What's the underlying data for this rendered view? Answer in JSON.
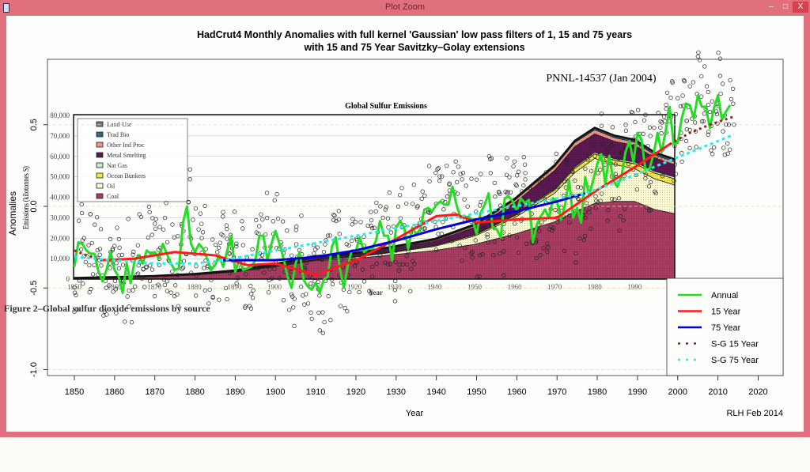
{
  "window": {
    "title": "Plot Zoom",
    "minimize": "–",
    "maximize": "□",
    "close": "X"
  },
  "colors": {
    "annual": "#22dd22",
    "y15": "#ff1a1a",
    "y75": "#0000dd",
    "sg15": "#a02020",
    "sg75": "#22eeee",
    "window_border": "#e0707c"
  },
  "chart_data": {
    "type": "line",
    "title": "HadCrut4 Monthly Anomalies with full kernel 'Gaussian' low pass filters of 1, 15 and 75 years",
    "subtitle": "with 15 and 75 Year Savitzky–Golay extensions",
    "xlabel": "Year",
    "ylabel": "Anomalies",
    "credit": "RLH Feb 2014",
    "xlim": [
      1843,
      2027
    ],
    "ylim": [
      -1.03,
      0.93
    ],
    "xticks": [
      "1850",
      "1860",
      "1870",
      "1880",
      "1890",
      "1900",
      "1910",
      "1920",
      "1930",
      "1940",
      "1950",
      "1960",
      "1970",
      "1980",
      "1990",
      "2000",
      "2010",
      "2020"
    ],
    "yticks": [
      "0.5",
      "0.0",
      "-0.5",
      "-1.0"
    ],
    "grid": "dashed horizontal at y ticks",
    "legend": {
      "placement": "bottom-right",
      "entries": [
        "Annual",
        "15 Year",
        "75 Year",
        "S-G 15 Year",
        "S-G 75 Year"
      ]
    },
    "annual": {
      "start_year": 1850,
      "values": [
        -0.37,
        -0.22,
        -0.23,
        -0.27,
        -0.29,
        -0.29,
        -0.4,
        -0.46,
        -0.39,
        -0.28,
        -0.39,
        -0.43,
        -0.53,
        -0.35,
        -0.47,
        -0.33,
        -0.3,
        -0.35,
        -0.27,
        -0.29,
        -0.28,
        -0.32,
        -0.23,
        -0.29,
        -0.35,
        -0.39,
        -0.38,
        -0.1,
        0.0,
        -0.23,
        -0.28,
        -0.23,
        -0.26,
        -0.32,
        -0.39,
        -0.36,
        -0.3,
        -0.37,
        -0.27,
        -0.18,
        -0.4,
        -0.33,
        -0.39,
        -0.38,
        -0.37,
        -0.33,
        -0.18,
        -0.18,
        -0.33,
        -0.23,
        -0.15,
        -0.23,
        -0.32,
        -0.43,
        -0.5,
        -0.35,
        -0.28,
        -0.45,
        -0.49,
        -0.51,
        -0.47,
        -0.53,
        -0.45,
        -0.43,
        -0.25,
        -0.19,
        -0.38,
        -0.5,
        -0.36,
        -0.27,
        -0.27,
        -0.19,
        -0.28,
        -0.26,
        -0.26,
        -0.21,
        -0.09,
        -0.18,
        -0.18,
        -0.33,
        -0.13,
        -0.09,
        -0.13,
        -0.26,
        -0.13,
        -0.17,
        -0.14,
        -0.02,
        -0.01,
        -0.03,
        0.01,
        0.03,
        0.01,
        0.01,
        0.12,
        0.01,
        -0.07,
        -0.06,
        -0.07,
        -0.08,
        -0.17,
        -0.04,
        0.01,
        0.08,
        -0.13,
        -0.14,
        -0.19,
        0.05,
        0.06,
        0.03,
        -0.03,
        0.05,
        0.02,
        0.04,
        -0.22,
        -0.11,
        -0.06,
        -0.02,
        -0.07,
        0.05,
        0.03,
        -0.08,
        0.01,
        0.16,
        -0.07,
        -0.01,
        -0.1,
        0.18,
        0.07,
        0.16,
        0.26,
        0.32,
        0.14,
        0.31,
        0.16,
        0.12,
        0.18,
        0.33,
        0.4,
        0.27,
        0.45,
        0.41,
        0.22,
        0.23,
        0.32,
        0.45,
        0.33,
        0.46,
        0.61,
        0.38,
        0.39,
        0.54,
        0.63,
        0.62,
        0.54,
        0.68,
        0.61,
        0.61,
        0.48,
        0.6,
        0.68,
        0.53,
        0.58,
        0.62
      ]
    },
    "series": [
      {
        "name": "15 Year",
        "x": [
          1857,
          1865,
          1875,
          1885,
          1893,
          1900,
          1910,
          1920,
          1930,
          1940,
          1945,
          1950,
          1960,
          1970,
          1980,
          1990,
          1998
        ],
        "values": [
          -0.33,
          -0.32,
          -0.28,
          -0.3,
          -0.36,
          -0.35,
          -0.42,
          -0.33,
          -0.2,
          -0.06,
          -0.05,
          -0.1,
          -0.08,
          -0.07,
          0.1,
          0.25,
          0.38
        ]
      },
      {
        "name": "75 Year",
        "x": [
          1887,
          1900,
          1910,
          1920,
          1930,
          1940,
          1950,
          1960,
          1970,
          1977
        ],
        "values": [
          -0.33,
          -0.33,
          -0.31,
          -0.27,
          -0.21,
          -0.14,
          -0.08,
          -0.03,
          0.03,
          0.08
        ]
      },
      {
        "name": "S-G 15 Year",
        "x": [
          1850,
          1853,
          1857,
          1998,
          2003,
          2008,
          2014
        ],
        "values": [
          -0.27,
          -0.3,
          -0.33,
          0.38,
          0.45,
          0.5,
          0.55
        ]
      },
      {
        "name": "S-G 75 Year",
        "x": [
          1850,
          1860,
          1870,
          1880,
          1887,
          1977,
          1985,
          1990,
          2000,
          2010,
          2014
        ],
        "values": [
          -0.31,
          -0.33,
          -0.35,
          -0.35,
          -0.33,
          0.08,
          0.15,
          0.2,
          0.3,
          0.4,
          0.44
        ]
      }
    ],
    "inset": {
      "title": "Global Sulfur Emissions",
      "source": "PNNL-14537 (Jan 2004)",
      "caption": "Figure 2–Global sulfur dioxide emissions by source",
      "xlabel": "Year",
      "ylabel": "Emissions (kilotonnes S)",
      "xticks": [
        "1850",
        "1860",
        "1870",
        "1880",
        "1890",
        "1900",
        "1910",
        "1920",
        "1930",
        "1940",
        "1950",
        "1960",
        "1970",
        "1980",
        "1990",
        "2000"
      ],
      "yticks": [
        "0",
        "10,000",
        "20,000",
        "30,000",
        "40,000",
        "50,000",
        "60,000",
        "70,000",
        "80,000"
      ],
      "type": "area",
      "years": [
        1850,
        1860,
        1870,
        1880,
        1890,
        1900,
        1910,
        1920,
        1930,
        1940,
        1950,
        1960,
        1970,
        1975,
        1980,
        1985,
        1990,
        1995,
        2000
      ],
      "layers": [
        {
          "name": "Coal",
          "color": "#a83c62",
          "values": [
            300,
            700,
            1200,
            2000,
            3500,
            6000,
            9000,
            10000,
            12000,
            14000,
            17000,
            22000,
            28000,
            33000,
            37000,
            38000,
            38000,
            34000,
            32000
          ]
        },
        {
          "name": "Oil",
          "color": "#fffbd2",
          "values": [
            0,
            0,
            0,
            0,
            50,
            100,
            300,
            700,
            1200,
            2000,
            4000,
            8000,
            14000,
            19000,
            22000,
            18000,
            16000,
            15000,
            14000
          ]
        },
        {
          "name": "Ocean Bunkers",
          "color": "#f2e648",
          "values": [
            0,
            0,
            0,
            0,
            0,
            50,
            100,
            200,
            300,
            400,
            600,
            900,
            1500,
            2000,
            2200,
            2000,
            2400,
            2800,
            3000
          ]
        },
        {
          "name": "Nat Gas",
          "color": "#c8e6c8",
          "values": [
            0,
            0,
            0,
            0,
            0,
            0,
            0,
            0,
            50,
            100,
            200,
            400,
            600,
            700,
            800,
            800,
            900,
            900,
            900
          ]
        },
        {
          "name": "Metal Smelting",
          "color": "#5c1850",
          "values": [
            0,
            0,
            0,
            100,
            200,
            500,
            1000,
            1000,
            1500,
            2000,
            3500,
            6000,
            9000,
            10000,
            9000,
            8500,
            8000,
            6500,
            6000
          ]
        },
        {
          "name": "Other Ind Proc",
          "color": "#ee9484",
          "values": [
            0,
            0,
            0,
            50,
            100,
            200,
            300,
            300,
            400,
            500,
            800,
            1200,
            1800,
            2000,
            2000,
            1800,
            1700,
            1500,
            1400
          ]
        },
        {
          "name": "Trad Bio",
          "color": "#2e6a8a",
          "values": [
            200,
            220,
            240,
            260,
            280,
            300,
            330,
            360,
            390,
            420,
            460,
            520,
            600,
            650,
            700,
            750,
            800,
            850,
            900
          ]
        },
        {
          "name": "Land-Use",
          "color": "#777777",
          "values": [
            100,
            110,
            120,
            130,
            140,
            150,
            160,
            170,
            180,
            190,
            200,
            220,
            240,
            260,
            280,
            300,
            320,
            340,
            360
          ]
        }
      ],
      "legend_order": [
        "Land-Use",
        "Trad Bio",
        "Other Ind Proc",
        "Metal Smelting",
        "Nat Gas",
        "Ocean Bunkers",
        "Oil",
        "Coal"
      ]
    }
  }
}
